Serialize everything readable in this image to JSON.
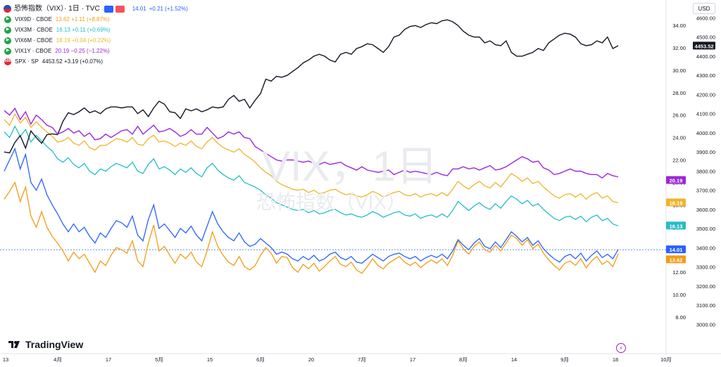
{
  "header": {
    "title": "恐怖指数（VIX）· 1日 · TVC",
    "main_value": "14.01",
    "main_change": "+0.21 (+1.52%)"
  },
  "legend": [
    {
      "name": "VIX9D · CBOE",
      "value": "13.62 +1.11 (+8.87%)",
      "color": "#f39c12"
    },
    {
      "name": "VIX3M · CBOE",
      "value": "16.13 +0.11 (+0.69%)",
      "color": "#26bcc8"
    },
    {
      "name": "VIX6M · CBOE",
      "value": "18.19 +0.04 (+0.22%)",
      "color": "#f0b429"
    },
    {
      "name": "VIX1Y · CBOE",
      "value": "20.19 −0.25 (−1.22%)",
      "color": "#9c27d8"
    },
    {
      "name": "SPX · SP",
      "value": "4453.52 +3.19 (+0.07%)",
      "color": "#131722"
    }
  ],
  "watermark": {
    "line1": "VIX，1日",
    "line2": "恐怖指数（VIX）"
  },
  "brand": "TradingView",
  "currency": "USD",
  "chart_data": {
    "type": "line",
    "x_ticks": [
      "13",
      "4月",
      "17",
      "5月",
      "15",
      "6月",
      "20",
      "7月",
      "17",
      "8月",
      "14",
      "9月",
      "18",
      "10月"
    ],
    "left_axis": {
      "min": 6.5,
      "max": 35.0,
      "ticks": [
        8.0,
        10.0,
        12.0,
        14.0,
        16.0,
        18.0,
        20.0,
        22.0,
        24.0,
        26.0,
        28.0,
        30.0,
        32.0,
        34.0
      ]
    },
    "right_axis": {
      "min": 2950,
      "max": 4620,
      "ticks": [
        3000,
        3100,
        3200,
        3300,
        3400,
        3500,
        3600,
        3700,
        3800,
        3900,
        4000,
        4100,
        4200,
        4300,
        4400,
        4500,
        4600
      ]
    },
    "last_value_tags": [
      {
        "label": "4453.52",
        "color": "#131722"
      },
      {
        "label": "20.19",
        "color": "#9c27d8"
      },
      {
        "label": "18.19",
        "color": "#f0b429"
      },
      {
        "label": "16.13",
        "color": "#26bcc8"
      },
      {
        "label": "14.01",
        "color": "#2962ff"
      },
      {
        "label": "13.62",
        "color": "#f39c12"
      }
    ],
    "series": [
      {
        "name": "SPX · SP",
        "axis": "right",
        "color": "#131722",
        "values": [
          3900,
          3895,
          3950,
          3985,
          3920,
          4010,
          3975,
          3945,
          3990,
          3995,
          3990,
          4060,
          4105,
          4095,
          4110,
          4130,
          4105,
          4115,
          4100,
          4125,
          4135,
          4135,
          4130,
          4135,
          4135,
          4100,
          4120,
          4085,
          4130,
          4165,
          4150,
          4110,
          4105,
          4075,
          4125,
          4115,
          4125,
          4110,
          4120,
          4135,
          4130,
          4135,
          4175,
          4195,
          4165,
          4175,
          4130,
          4170,
          4205,
          4280,
          4270,
          4295,
          4290,
          4300,
          4320,
          4340,
          4365,
          4380,
          4400,
          4410,
          4400,
          4380,
          4370,
          4410,
          4420,
          4410,
          4440,
          4450,
          4465,
          4460,
          4440,
          4420,
          4450,
          4500,
          4510,
          4540,
          4555,
          4560,
          4550,
          4565,
          4575,
          4570,
          4585,
          4590,
          4580,
          4560,
          4530,
          4510,
          4500,
          4500,
          4470,
          4480,
          4460,
          4455,
          4480,
          4420,
          4400,
          4400,
          4410,
          4420,
          4440,
          4430,
          4470,
          4490,
          4510,
          4520,
          4515,
          4500,
          4465,
          4455,
          4460,
          4480,
          4470,
          4500,
          4440,
          4455
        ]
      },
      {
        "name": "VIX1Y · CBOE",
        "axis": "left",
        "color": "#9c27d8",
        "values": [
          26.4,
          26.0,
          26.6,
          25.6,
          26.3,
          25.2,
          26.0,
          25.6,
          25.1,
          24.9,
          24.3,
          24.5,
          24.8,
          24.4,
          24.6,
          24.1,
          24.4,
          23.8,
          23.9,
          24.3,
          24.0,
          24.3,
          24.6,
          24.7,
          24.3,
          25.0,
          24.3,
          24.7,
          25.1,
          24.5,
          24.6,
          24.8,
          24.5,
          24.1,
          24.3,
          24.7,
          24.3,
          24.3,
          24.9,
          24.4,
          23.9,
          24.1,
          24.5,
          24.3,
          24.5,
          24.0,
          23.9,
          23.2,
          22.9,
          22.6,
          22.3,
          22.0,
          21.9,
          22.0,
          22.0,
          21.9,
          21.8,
          21.9,
          21.7,
          21.6,
          21.8,
          21.6,
          21.7,
          21.8,
          21.5,
          21.3,
          21.1,
          21.4,
          21.1,
          21.0,
          20.9,
          21.0,
          21.1,
          20.7,
          20.9,
          21.1,
          20.9,
          21.0,
          20.9,
          20.8,
          20.7,
          20.9,
          20.7,
          20.6,
          21.2,
          21.2,
          21.4,
          21.2,
          21.3,
          21.1,
          21.3,
          21.5,
          21.1,
          21.2,
          21.4,
          21.7,
          22.0,
          22.3,
          22.1,
          21.8,
          21.9,
          21.3,
          21.1,
          20.7,
          20.8,
          21.0,
          21.2,
          21.0,
          21.0,
          20.8,
          20.7,
          20.7,
          20.4,
          20.8,
          20.6,
          20.5
        ]
      }
    ]
  }
}
